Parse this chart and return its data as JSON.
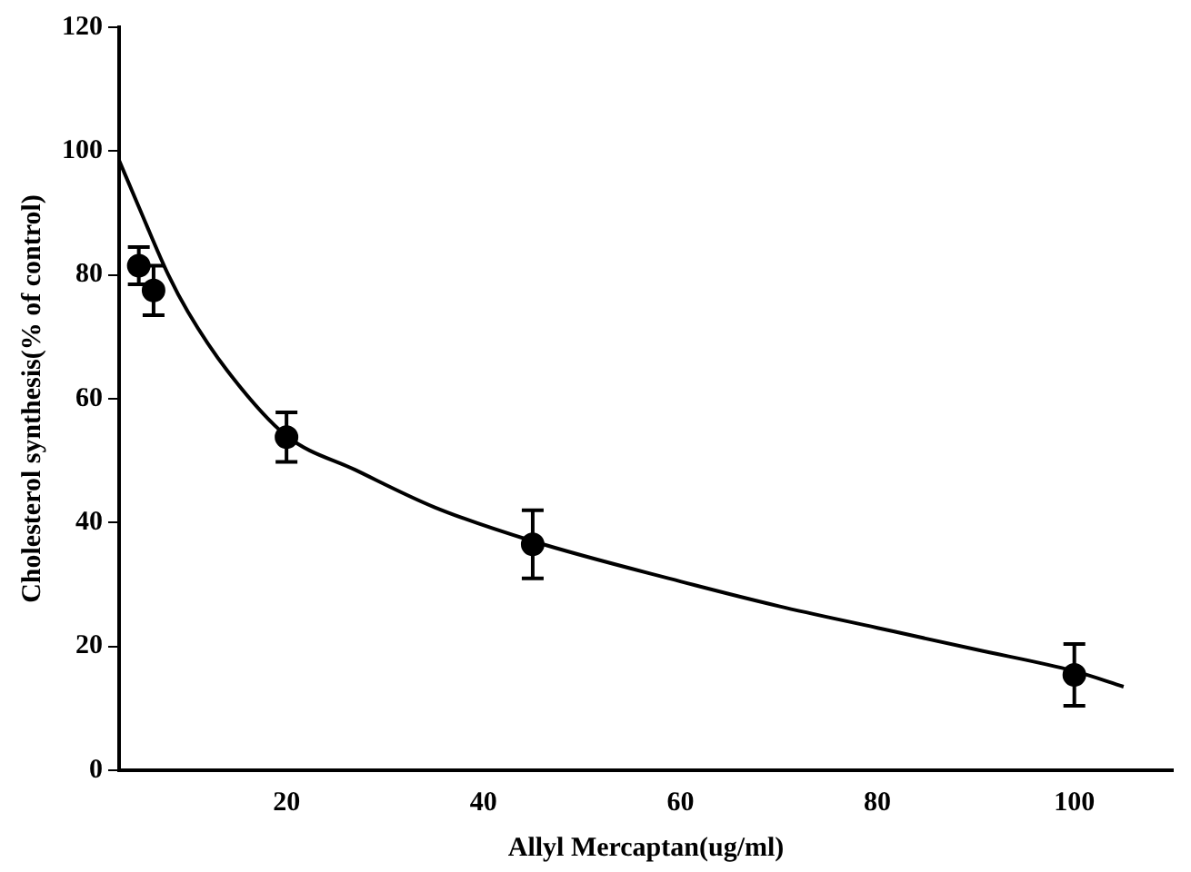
{
  "chart_data": {
    "type": "scatter",
    "xlabel": "Allyl Mercaptan(ug/ml)",
    "ylabel": "Cholesterol synthesis(% of control)",
    "xlim": [
      3,
      110
    ],
    "xticks": [
      20,
      40,
      60,
      80,
      100
    ],
    "ylim": [
      0,
      120
    ],
    "yticks": [
      0,
      20,
      40,
      60,
      80,
      100,
      120
    ],
    "grid": false,
    "legend": false,
    "series": [
      {
        "type": "scatter",
        "color": "#000000",
        "marker": "circle",
        "x": [
          5,
          6.5,
          20,
          45,
          100
        ],
        "values": [
          81.5,
          77.5,
          53.8,
          36.5,
          15.4
        ],
        "errors": [
          3,
          4,
          4,
          5.5,
          5
        ]
      },
      {
        "type": "line",
        "color": "#000000",
        "marker": "none",
        "line_style": "solid",
        "x": [
          3,
          5,
          8,
          10,
          14,
          20,
          27,
          35,
          45,
          60,
          70,
          80,
          90,
          100,
          105
        ],
        "values": [
          98.5,
          91,
          80,
          74,
          64.5,
          54,
          48.5,
          42.5,
          37,
          30.5,
          26.5,
          23,
          19.5,
          16,
          13.5
        ]
      }
    ]
  }
}
